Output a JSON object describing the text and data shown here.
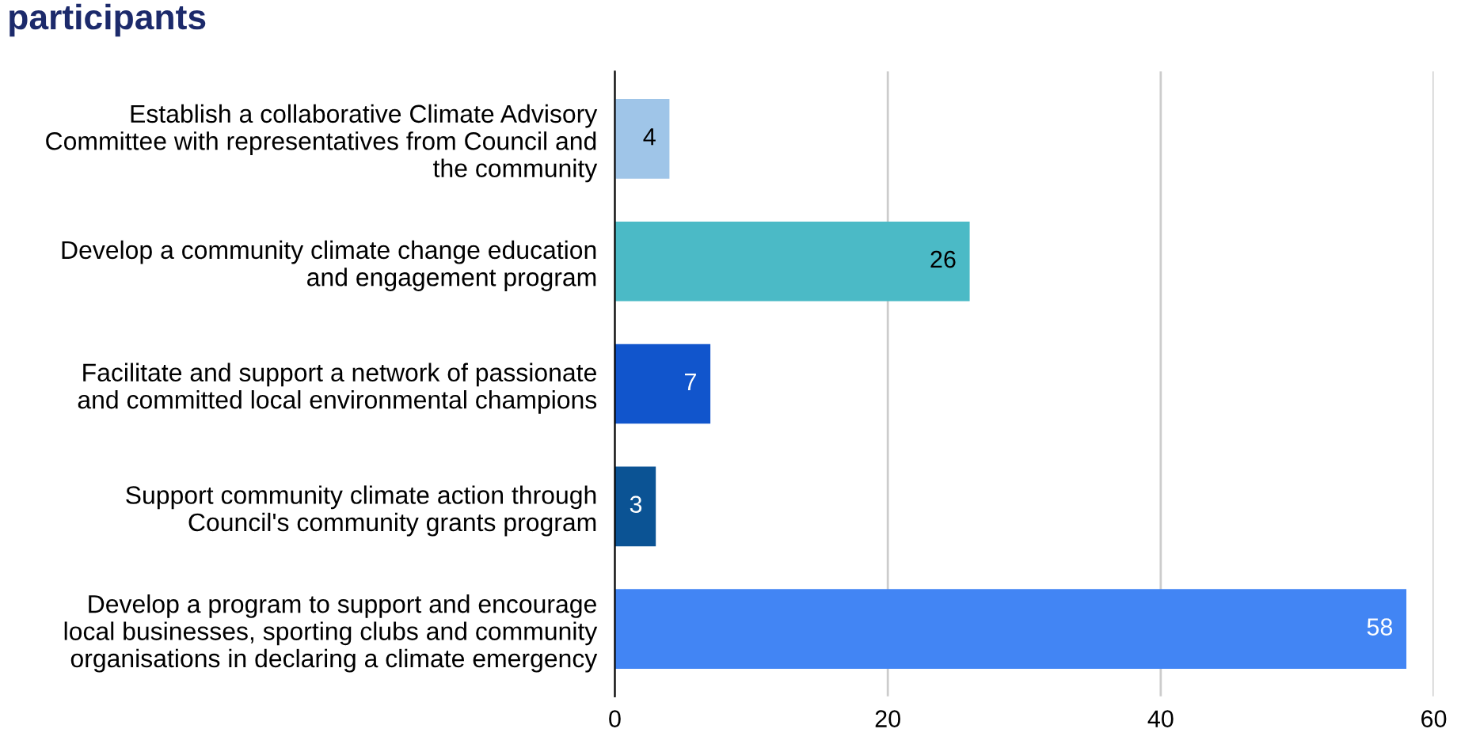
{
  "chart_data": {
    "type": "bar",
    "orientation": "horizontal",
    "title": "participants",
    "categories": [
      "Establish a collaborative Climate Advisory\nCommittee with representatives from Council and\nthe community",
      "Develop a community climate change education\nand engagement program",
      "Facilitate and support a network of passionate\nand committed local environmental champions",
      "Support community climate action through\nCouncil's community grants program",
      "Develop a program to support and encourage\nlocal businesses, sporting clubs and community\norganisations in declaring a climate emergency"
    ],
    "values": [
      4,
      26,
      7,
      3,
      58
    ],
    "colors": [
      "#9fc5e8",
      "#4bbac6",
      "#1155cc",
      "#0b5394",
      "#4285f4"
    ],
    "xlim": [
      0,
      60
    ],
    "xticks": [
      0,
      20,
      40,
      60
    ],
    "grid": "x",
    "data_labels": true
  }
}
